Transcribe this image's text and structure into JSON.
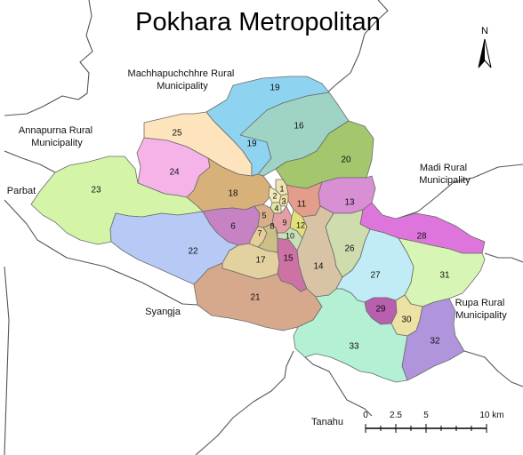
{
  "title": "Pokhara Metropolitan",
  "north_label": "N",
  "regions": {
    "machhapuchchhre": [
      "Machhapuchchhre Rural",
      "Municipality"
    ],
    "annapurna": [
      "Annapurna Rural",
      "Municipality"
    ],
    "parbat": [
      "Parbat"
    ],
    "madi": [
      "Madi Rural",
      "Municipality"
    ],
    "rupa": [
      "Rupa Rural",
      "Municipality"
    ],
    "syangja": [
      "Syangja"
    ],
    "tanahu": [
      "Tanahu"
    ]
  },
  "scale": {
    "ticks": [
      "0",
      "2.5",
      "5",
      "10 km"
    ]
  },
  "wards": [
    {
      "id": "25",
      "color": "#fde4bc"
    },
    {
      "id": "19",
      "color": "#8ed3ef"
    },
    {
      "id": "16",
      "color": "#9fd3c6"
    },
    {
      "id": "20",
      "color": "#a4c66c"
    },
    {
      "id": "24",
      "color": "#f6b3e8"
    },
    {
      "id": "23",
      "color": "#d4f5a8"
    },
    {
      "id": "18",
      "color": "#d8b07a"
    },
    {
      "id": "13",
      "color": "#d88fd4"
    },
    {
      "id": "11",
      "color": "#e49d8a"
    },
    {
      "id": "6",
      "color": "#c782c4"
    },
    {
      "id": "22",
      "color": "#b7c9f5"
    },
    {
      "id": "28",
      "color": "#de75dc"
    },
    {
      "id": "26",
      "color": "#cfdcae"
    },
    {
      "id": "14",
      "color": "#d9c3a5"
    },
    {
      "id": "17",
      "color": "#e3d2a0"
    },
    {
      "id": "15",
      "color": "#cd72a5"
    },
    {
      "id": "31",
      "color": "#d7f5b4"
    },
    {
      "id": "27",
      "color": "#c2ecf5"
    },
    {
      "id": "21",
      "color": "#d6a98d"
    },
    {
      "id": "29",
      "color": "#b95fb0"
    },
    {
      "id": "30",
      "color": "#ebe2a3"
    },
    {
      "id": "32",
      "color": "#b094dc"
    },
    {
      "id": "33",
      "color": "#b3f0d4"
    },
    {
      "id": "1",
      "color": "#f0e2b0"
    },
    {
      "id": "2",
      "color": "#f3eab8"
    },
    {
      "id": "3",
      "color": "#eedba0"
    },
    {
      "id": "4",
      "color": "#dfe7a0"
    },
    {
      "id": "5",
      "color": "#d7b089"
    },
    {
      "id": "7",
      "color": "#e6ce98"
    },
    {
      "id": "8",
      "color": "#cdbf88"
    },
    {
      "id": "9",
      "color": "#e3a0a4"
    },
    {
      "id": "10",
      "color": "#c8e0b8"
    },
    {
      "id": "12",
      "color": "#e2e07a"
    }
  ]
}
